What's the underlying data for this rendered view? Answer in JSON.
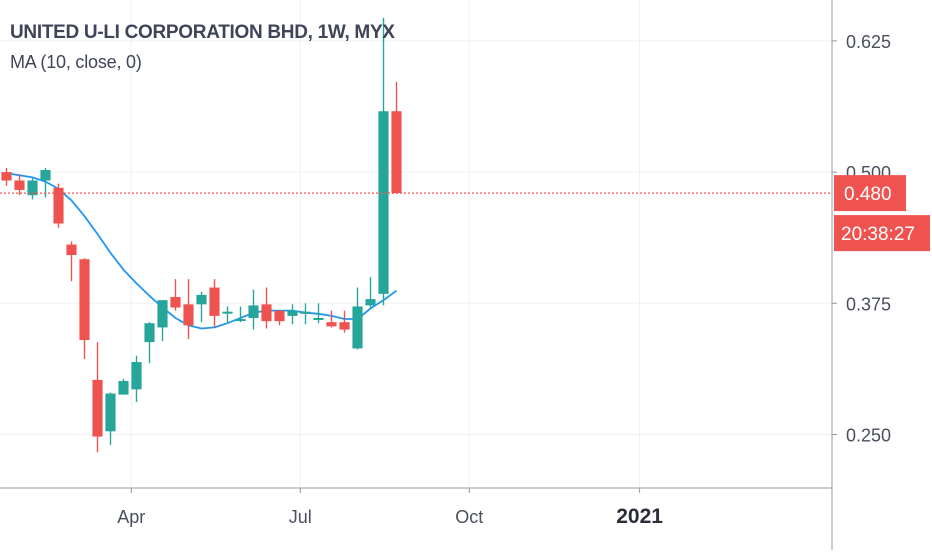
{
  "legend": {
    "title": "UNITED U-LI CORPORATION BHD, 1W, MYX",
    "indicator": "MA (10, close, 0)"
  },
  "price_badge": {
    "last_price": "0.480",
    "countdown": "20:38:27",
    "color": "#ef5350"
  },
  "colors": {
    "up": "#26a69a",
    "down": "#ef5350",
    "ma_line": "#2196f3",
    "grid": "#eef0f3",
    "axis_text": "#4a4f5c"
  },
  "chart_data": {
    "type": "candlestick",
    "title": "UNITED U-LI CORPORATION BHD, 1W, MYX",
    "ylim": [
      0.199,
      0.664
    ],
    "xlim": [
      -0.5,
      63.5
    ],
    "y_ticks": [
      {
        "value": 0.25,
        "label": "0.250"
      },
      {
        "value": 0.375,
        "label": "0.375"
      },
      {
        "value": 0.5,
        "label": "0.500"
      },
      {
        "value": 0.625,
        "label": "0.625"
      }
    ],
    "x_ticks": [
      {
        "week": 9.6,
        "label": "Apr",
        "bold": false
      },
      {
        "week": 22.6,
        "label": "Jul",
        "bold": false
      },
      {
        "week": 35.6,
        "label": "Oct",
        "bold": false
      },
      {
        "week": 48.7,
        "label": "2021",
        "bold": true
      }
    ],
    "last_price": 0.48,
    "candles": [
      {
        "week": 0,
        "open": 0.5,
        "high": 0.504,
        "low": 0.487,
        "close": 0.492
      },
      {
        "week": 1,
        "open": 0.492,
        "high": 0.498,
        "low": 0.478,
        "close": 0.483
      },
      {
        "week": 2,
        "open": 0.478,
        "high": 0.494,
        "low": 0.474,
        "close": 0.492
      },
      {
        "week": 3,
        "open": 0.492,
        "high": 0.504,
        "low": 0.476,
        "close": 0.502
      },
      {
        "week": 4,
        "open": 0.485,
        "high": 0.489,
        "low": 0.447,
        "close": 0.451
      },
      {
        "week": 5,
        "open": 0.431,
        "high": 0.434,
        "low": 0.396,
        "close": 0.421
      },
      {
        "week": 6,
        "open": 0.417,
        "high": 0.418,
        "low": 0.322,
        "close": 0.34
      },
      {
        "week": 7,
        "open": 0.302,
        "high": 0.338,
        "low": 0.233,
        "close": 0.248
      },
      {
        "week": 8,
        "open": 0.253,
        "high": 0.29,
        "low": 0.24,
        "close": 0.289
      },
      {
        "week": 9,
        "open": 0.288,
        "high": 0.303,
        "low": 0.288,
        "close": 0.301
      },
      {
        "week": 10,
        "open": 0.293,
        "high": 0.325,
        "low": 0.281,
        "close": 0.319
      },
      {
        "week": 11,
        "open": 0.338,
        "high": 0.357,
        "low": 0.318,
        "close": 0.356
      },
      {
        "week": 12,
        "open": 0.352,
        "high": 0.378,
        "low": 0.339,
        "close": 0.378
      },
      {
        "week": 13,
        "open": 0.381,
        "high": 0.398,
        "low": 0.368,
        "close": 0.371
      },
      {
        "week": 14,
        "open": 0.374,
        "high": 0.398,
        "low": 0.341,
        "close": 0.354
      },
      {
        "week": 15,
        "open": 0.374,
        "high": 0.386,
        "low": 0.357,
        "close": 0.383
      },
      {
        "week": 16,
        "open": 0.39,
        "high": 0.398,
        "low": 0.352,
        "close": 0.363
      },
      {
        "week": 17,
        "open": 0.367,
        "high": 0.372,
        "low": 0.356,
        "close": 0.367
      },
      {
        "week": 18,
        "open": 0.36,
        "high": 0.372,
        "low": 0.357,
        "close": 0.36
      },
      {
        "week": 19,
        "open": 0.361,
        "high": 0.388,
        "low": 0.35,
        "close": 0.373
      },
      {
        "week": 20,
        "open": 0.374,
        "high": 0.39,
        "low": 0.351,
        "close": 0.358
      },
      {
        "week": 21,
        "open": 0.368,
        "high": 0.368,
        "low": 0.354,
        "close": 0.358
      },
      {
        "week": 22,
        "open": 0.363,
        "high": 0.374,
        "low": 0.355,
        "close": 0.368
      },
      {
        "week": 23,
        "open": 0.365,
        "high": 0.375,
        "low": 0.355,
        "close": 0.367
      },
      {
        "week": 24,
        "open": 0.361,
        "high": 0.375,
        "low": 0.356,
        "close": 0.361
      },
      {
        "week": 25,
        "open": 0.357,
        "high": 0.368,
        "low": 0.352,
        "close": 0.353
      },
      {
        "week": 26,
        "open": 0.357,
        "high": 0.368,
        "low": 0.347,
        "close": 0.35
      },
      {
        "week": 27,
        "open": 0.332,
        "high": 0.39,
        "low": 0.331,
        "close": 0.372
      },
      {
        "week": 28,
        "open": 0.373,
        "high": 0.4,
        "low": 0.37,
        "close": 0.379
      },
      {
        "week": 29,
        "open": 0.384,
        "high": 0.647,
        "low": 0.373,
        "close": 0.558
      },
      {
        "week": 30,
        "open": 0.558,
        "high": 0.586,
        "low": 0.48,
        "close": 0.48
      }
    ],
    "ma": {
      "name": "MA (10, close, 0)",
      "points": [
        {
          "week": 0,
          "value": 0.499
        },
        {
          "week": 2,
          "value": 0.495
        },
        {
          "week": 3,
          "value": 0.491
        },
        {
          "week": 4,
          "value": 0.484
        },
        {
          "week": 5,
          "value": 0.473
        },
        {
          "week": 6,
          "value": 0.458
        },
        {
          "week": 7,
          "value": 0.441
        },
        {
          "week": 8,
          "value": 0.423
        },
        {
          "week": 9,
          "value": 0.407
        },
        {
          "week": 10,
          "value": 0.394
        },
        {
          "week": 11,
          "value": 0.382
        },
        {
          "week": 12,
          "value": 0.371
        },
        {
          "week": 13,
          "value": 0.361
        },
        {
          "week": 14,
          "value": 0.354
        },
        {
          "week": 15,
          "value": 0.351
        },
        {
          "week": 16,
          "value": 0.352
        },
        {
          "week": 17,
          "value": 0.356
        },
        {
          "week": 18,
          "value": 0.361
        },
        {
          "week": 19,
          "value": 0.366
        },
        {
          "week": 20,
          "value": 0.368
        },
        {
          "week": 21,
          "value": 0.368
        },
        {
          "week": 22,
          "value": 0.368
        },
        {
          "week": 23,
          "value": 0.366
        },
        {
          "week": 24,
          "value": 0.365
        },
        {
          "week": 25,
          "value": 0.363
        },
        {
          "week": 26,
          "value": 0.36
        },
        {
          "week": 27,
          "value": 0.36
        },
        {
          "week": 28,
          "value": 0.37
        },
        {
          "week": 29,
          "value": 0.378
        },
        {
          "week": 30,
          "value": 0.387
        }
      ]
    }
  }
}
